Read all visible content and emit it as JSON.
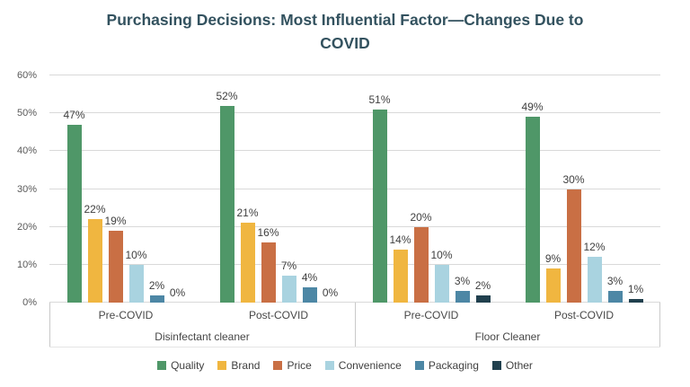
{
  "title": {
    "line1": "Purchasing Decisions: Most Influential Factor—Changes Due to",
    "line2": "COVID"
  },
  "colors": {
    "title_text": "#33525f",
    "axis_text": "#595959",
    "category_text": "#474747",
    "data_label_text": "#3f3f3f",
    "gridline": "#d9d9d9",
    "divider": "#c9c9c9"
  },
  "chart_data": {
    "type": "bar",
    "title": "Purchasing Decisions: Most Influential Factor—Changes Due to COVID",
    "xlabel": "",
    "ylabel": "",
    "ylim": [
      0,
      60
    ],
    "ytick_step": 10,
    "yticks": [
      "0%",
      "10%",
      "20%",
      "30%",
      "40%",
      "50%",
      "60%"
    ],
    "grid": true,
    "legend_position": "bottom",
    "axis_tier1": [
      "Pre-COVID",
      "Post-COVID",
      "Pre-COVID",
      "Post-COVID"
    ],
    "axis_tier2": [
      "Disinfectant cleaner",
      "Floor Cleaner"
    ],
    "groups": [
      {
        "product": "Disinfectant cleaner",
        "period": "Pre-COVID"
      },
      {
        "product": "Disinfectant cleaner",
        "period": "Post-COVID"
      },
      {
        "product": "Floor Cleaner",
        "period": "Pre-COVID"
      },
      {
        "product": "Floor Cleaner",
        "period": "Post-COVID"
      }
    ],
    "series": [
      {
        "name": "Quality",
        "color": "#4f9768",
        "values": [
          47,
          52,
          51,
          49
        ],
        "labels": [
          "47%",
          "52%",
          "51%",
          "49%"
        ]
      },
      {
        "name": "Brand",
        "color": "#f0b640",
        "values": [
          22,
          21,
          14,
          9
        ],
        "labels": [
          "22%",
          "21%",
          "14%",
          "9%"
        ]
      },
      {
        "name": "Price",
        "color": "#c96f44",
        "values": [
          19,
          16,
          20,
          30
        ],
        "labels": [
          "19%",
          "16%",
          "20%",
          "30%"
        ]
      },
      {
        "name": "Convenience",
        "color": "#a9d3e0",
        "values": [
          10,
          7,
          10,
          12
        ],
        "labels": [
          "10%",
          "7%",
          "10%",
          "12%"
        ]
      },
      {
        "name": "Packaging",
        "color": "#4d87a5",
        "values": [
          2,
          4,
          3,
          3
        ],
        "labels": [
          "2%",
          "4%",
          "3%",
          "3%"
        ]
      },
      {
        "name": "Other",
        "color": "#21404e",
        "values": [
          0,
          0,
          2,
          1
        ],
        "labels": [
          "0%",
          "0%",
          "2%",
          "1%"
        ]
      }
    ]
  }
}
